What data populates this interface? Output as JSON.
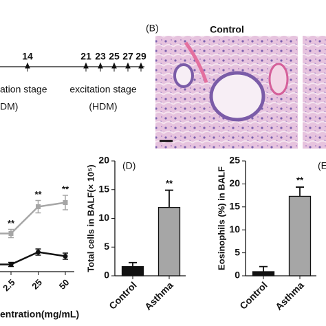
{
  "timeline": {
    "days": [
      "14",
      "21",
      "23",
      "25",
      "27",
      "29"
    ],
    "stage1": "ation stage",
    "stage1_agent": "DM)",
    "stage2": "excitation stage",
    "stage2_agent": "(HDM)"
  },
  "panel_b": {
    "label": "(B)",
    "title": "Control"
  },
  "panel_e_label": "(E",
  "chart_data": [
    {
      "type": "line",
      "categories": [
        "2.5",
        "25",
        "50"
      ],
      "x_label": "entration(mg/mL)",
      "ylim": [
        0,
        100
      ],
      "series": [
        {
          "color": "#a6a6a6",
          "values": [
            37,
            63,
            67
          ],
          "errors": [
            4,
            6,
            7
          ],
          "significance": [
            "**",
            "**",
            "**"
          ]
        },
        {
          "color": "#111111",
          "values": [
            7,
            19,
            15
          ],
          "errors": [
            2,
            3,
            3
          ]
        }
      ]
    },
    {
      "type": "bar",
      "label": "(D)",
      "y_label": "Total cells in BALF(× 10⁵)",
      "categories": [
        "Control",
        "Asthma"
      ],
      "values": [
        1.6,
        11.9
      ],
      "errors": [
        0.7,
        3.0
      ],
      "colors": [
        "#111111",
        "#a6a6a6"
      ],
      "significance": [
        null,
        "**"
      ],
      "ylim": [
        0,
        20
      ],
      "yticks": [
        0,
        5,
        10,
        15,
        20
      ]
    },
    {
      "type": "bar",
      "y_label": "Eosinophils (%) in BALF",
      "categories": [
        "Control",
        "Asthma"
      ],
      "values": [
        0.9,
        17.3
      ],
      "errors": [
        1.1,
        2.0
      ],
      "colors": [
        "#111111",
        "#a6a6a6"
      ],
      "significance": [
        null,
        "**"
      ],
      "ylim": [
        0,
        25
      ],
      "yticks": [
        0,
        5,
        10,
        15,
        20,
        25
      ]
    }
  ]
}
